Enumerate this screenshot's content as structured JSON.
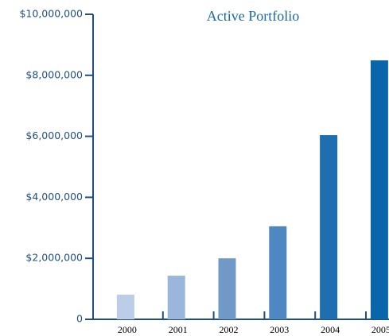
{
  "chart_data": {
    "type": "bar",
    "title": "Active Portfolio",
    "categories": [
      "2000",
      "2001",
      "2002",
      "2003",
      "2004",
      "2005"
    ],
    "values": [
      810000,
      1430000,
      2000000,
      3050000,
      6040000,
      8490000
    ],
    "colors": [
      "#bccde8",
      "#9ab6dc",
      "#7099c8",
      "#4f88c0",
      "#1f6fb0",
      "#0a66ab"
    ],
    "ylim": [
      0,
      10000000
    ],
    "yticks": [
      0,
      {
        "value": 2000000,
        "label": "$2,000,000"
      },
      {
        "value": 4000000,
        "label": "$4,000,000"
      },
      {
        "value": 6000000,
        "label": "$6,000,000"
      },
      {
        "value": 8000000,
        "label": "$8,000,000"
      },
      {
        "value": 10000000,
        "label": "$10,000,000"
      }
    ],
    "grid": false
  }
}
